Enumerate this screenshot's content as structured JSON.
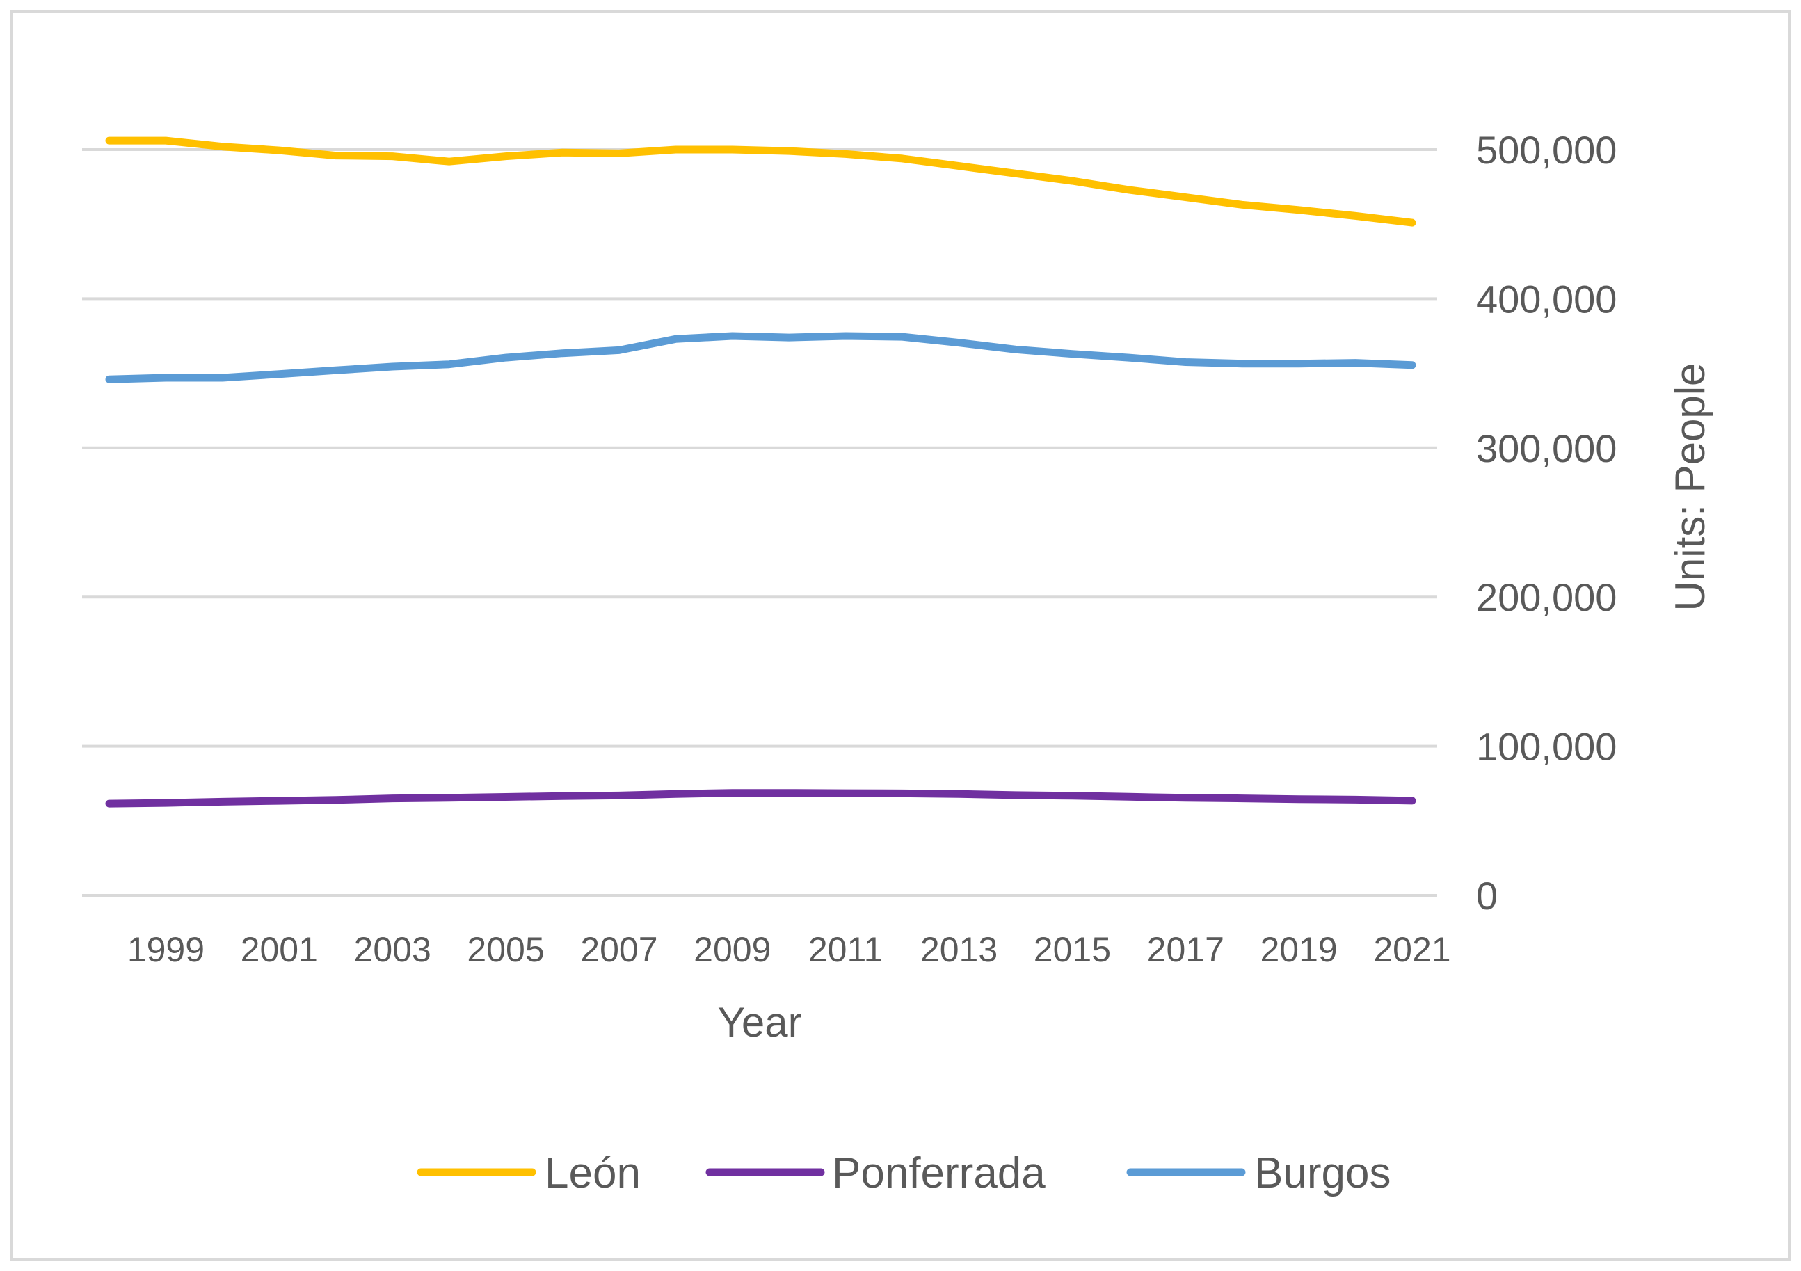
{
  "chart_data": {
    "type": "line",
    "title": "",
    "xlabel": "Year",
    "ylabel": "Units: People",
    "ylim": [
      0,
      500000
    ],
    "ytick_values": [
      0,
      100000,
      200000,
      300000,
      400000,
      500000
    ],
    "ytick_labels": [
      "0",
      "100,000",
      "200,000",
      "300,000",
      "400,000",
      "500,000"
    ],
    "xtick_labels": [
      "1999",
      "2001",
      "2003",
      "2005",
      "2007",
      "2009",
      "2011",
      "2013",
      "2015",
      "2017",
      "2019",
      "2021"
    ],
    "x": [
      1998,
      1999,
      2000,
      2001,
      2002,
      2003,
      2004,
      2005,
      2006,
      2007,
      2008,
      2009,
      2010,
      2011,
      2012,
      2013,
      2014,
      2015,
      2016,
      2017,
      2018,
      2019,
      2020,
      2021
    ],
    "grid": true,
    "legend_position": "bottom",
    "series": [
      {
        "name": "León",
        "color": "#FFC000",
        "values": [
          506000,
          506000,
          502000,
          499500,
          496000,
          495500,
          492000,
          495500,
          498000,
          497500,
          500000,
          500000,
          499000,
          497000,
          494000,
          489000,
          484000,
          479000,
          473000,
          468000,
          463000,
          459500,
          455500,
          451000
        ]
      },
      {
        "name": "Ponferrada",
        "color": "#7030A0",
        "values": [
          61500,
          62000,
          62800,
          63400,
          64000,
          65000,
          65400,
          66000,
          66600,
          67000,
          68000,
          68700,
          68700,
          68500,
          68400,
          68000,
          67200,
          66800,
          66100,
          65400,
          65000,
          64500,
          64200,
          63500
        ]
      },
      {
        "name": "Burgos",
        "color": "#5B9BD5",
        "values": [
          346000,
          347000,
          347000,
          349500,
          352000,
          354500,
          356000,
          360500,
          363500,
          365500,
          373000,
          375000,
          374000,
          375000,
          374500,
          370500,
          366000,
          363000,
          360500,
          357500,
          356500,
          356500,
          357000,
          355500
        ]
      }
    ]
  }
}
